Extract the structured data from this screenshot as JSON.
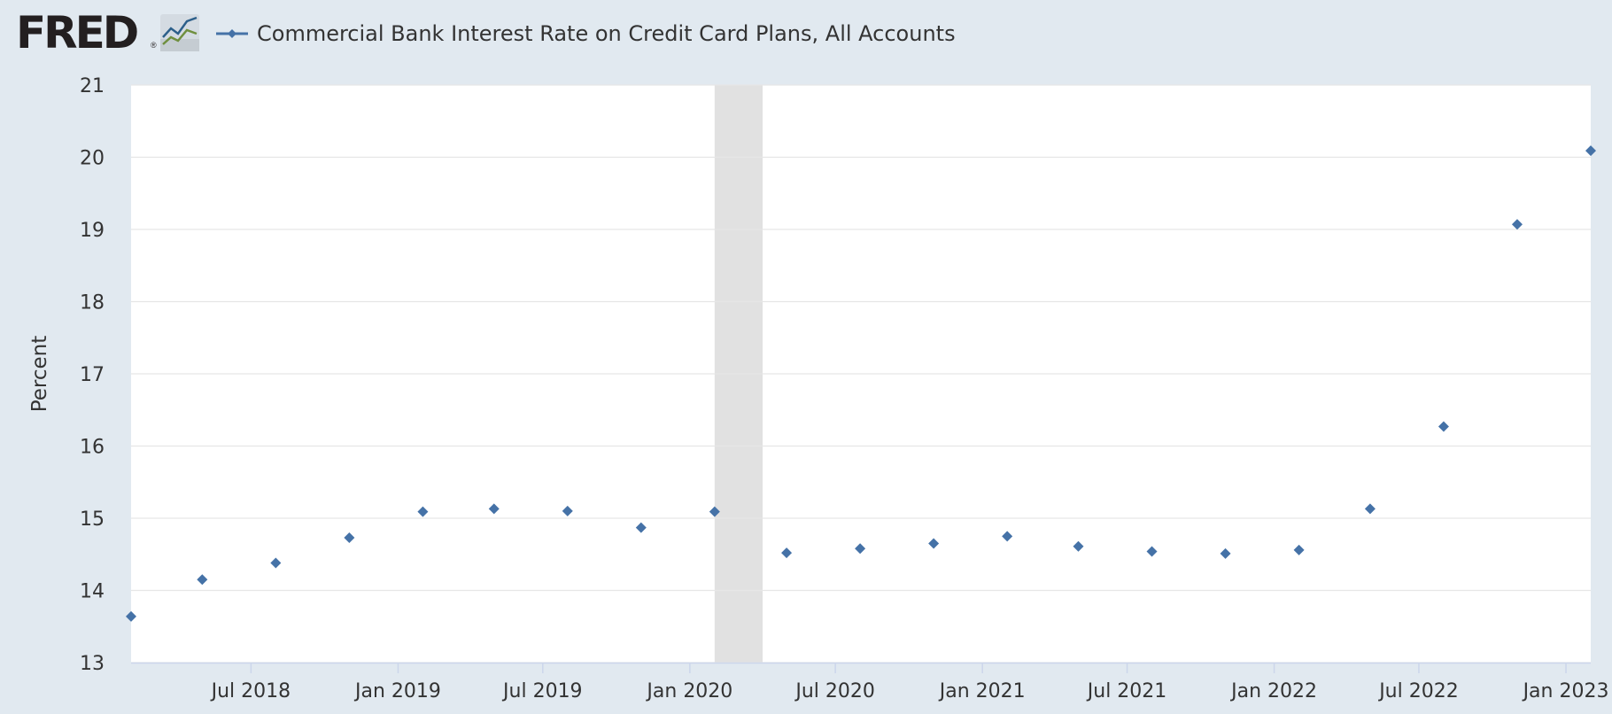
{
  "header": {
    "logo_text": "FRED",
    "logo_mark": "®",
    "logo_icon": "line-chart-icon"
  },
  "chart_data": {
    "type": "scatter",
    "title": "",
    "xlabel": "",
    "ylabel": "Percent",
    "ylim": [
      13,
      21
    ],
    "yticks": [
      13,
      14,
      15,
      16,
      17,
      18,
      19,
      20,
      21
    ],
    "xlim": [
      "2018-02-01",
      "2023-02-01"
    ],
    "xticks": [
      {
        "date": "2018-07-01",
        "label": "Jul 2018"
      },
      {
        "date": "2019-01-01",
        "label": "Jan 2019"
      },
      {
        "date": "2019-07-01",
        "label": "Jul 2019"
      },
      {
        "date": "2020-01-01",
        "label": "Jan 2020"
      },
      {
        "date": "2020-07-01",
        "label": "Jul 2020"
      },
      {
        "date": "2021-01-01",
        "label": "Jan 2021"
      },
      {
        "date": "2021-07-01",
        "label": "Jul 2021"
      },
      {
        "date": "2022-01-01",
        "label": "Jan 2022"
      },
      {
        "date": "2022-07-01",
        "label": "Jul 2022"
      },
      {
        "date": "2023-01-01",
        "label": "Jan 2023"
      }
    ],
    "recession_band": [
      "2020-02-01",
      "2020-04-01"
    ],
    "grid": true,
    "legend_position": "top-left",
    "colors": {
      "series": "#4572a7",
      "plot_bg": "#ffffff",
      "recession": "#e1e1e1",
      "gridline": "#e6e6e6"
    },
    "series": [
      {
        "name": "Commercial Bank Interest Rate on Credit Card Plans, All Accounts",
        "points": [
          {
            "x": "2018-02-01",
            "y": 13.64
          },
          {
            "x": "2018-05-01",
            "y": 14.15
          },
          {
            "x": "2018-08-01",
            "y": 14.38
          },
          {
            "x": "2018-11-01",
            "y": 14.73
          },
          {
            "x": "2019-02-01",
            "y": 15.09
          },
          {
            "x": "2019-05-01",
            "y": 15.13
          },
          {
            "x": "2019-08-01",
            "y": 15.1
          },
          {
            "x": "2019-11-01",
            "y": 14.87
          },
          {
            "x": "2020-02-01",
            "y": 15.09
          },
          {
            "x": "2020-05-01",
            "y": 14.52
          },
          {
            "x": "2020-08-01",
            "y": 14.58
          },
          {
            "x": "2020-11-01",
            "y": 14.65
          },
          {
            "x": "2021-02-01",
            "y": 14.75
          },
          {
            "x": "2021-05-01",
            "y": 14.61
          },
          {
            "x": "2021-08-01",
            "y": 14.54
          },
          {
            "x": "2021-11-01",
            "y": 14.51
          },
          {
            "x": "2022-02-01",
            "y": 14.56
          },
          {
            "x": "2022-05-01",
            "y": 15.13
          },
          {
            "x": "2022-08-01",
            "y": 16.27
          },
          {
            "x": "2022-11-01",
            "y": 19.07
          },
          {
            "x": "2023-02-01",
            "y": 20.09
          }
        ]
      }
    ]
  }
}
